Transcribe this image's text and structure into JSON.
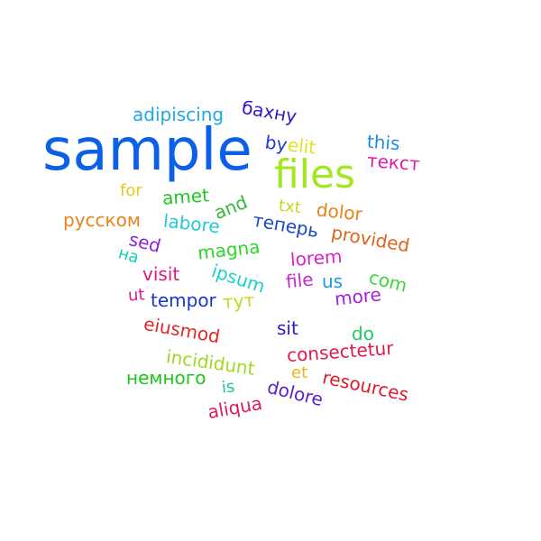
{
  "words": [
    {
      "text": "sample",
      "color": "#0b5fe8"
    },
    {
      "text": "files",
      "color": "#a2e81c"
    },
    {
      "text": "adipiscing",
      "color": "#1fa8e8"
    },
    {
      "text": "бахну",
      "color": "#3a15c8"
    },
    {
      "text": "by",
      "color": "#2338d8"
    },
    {
      "text": "elit",
      "color": "#e0e322"
    },
    {
      "text": "this",
      "color": "#1c8ee0"
    },
    {
      "text": "текст",
      "color": "#e01aa8"
    },
    {
      "text": "for",
      "color": "#e8c81a"
    },
    {
      "text": "amet",
      "color": "#22c822"
    },
    {
      "text": "and",
      "color": "#36b83a"
    },
    {
      "text": "txt",
      "color": "#c8d622"
    },
    {
      "text": "dolor",
      "color": "#e8821a"
    },
    {
      "text": "русском",
      "color": "#e8841a"
    },
    {
      "text": "labore",
      "color": "#25c6e0"
    },
    {
      "text": "теперь",
      "color": "#1c45c8"
    },
    {
      "text": "provided",
      "color": "#e0641c"
    },
    {
      "text": "sed",
      "color": "#8a22e0"
    },
    {
      "text": "на",
      "color": "#18d0b4"
    },
    {
      "text": "magna",
      "color": "#2ad82a"
    },
    {
      "text": "lorem",
      "color": "#d822d0"
    },
    {
      "text": "visit",
      "color": "#e01a7a"
    },
    {
      "text": "ipsum",
      "color": "#1ad2cc"
    },
    {
      "text": "file",
      "color": "#c828c8"
    },
    {
      "text": "us",
      "color": "#1a9ae0"
    },
    {
      "text": "com",
      "color": "#3ad83a"
    },
    {
      "text": "ut",
      "color": "#d81aa0"
    },
    {
      "text": "tempor",
      "color": "#1a38c8"
    },
    {
      "text": "тут",
      "color": "#c6d622"
    },
    {
      "text": "more",
      "color": "#a822d8"
    },
    {
      "text": "eiusmod",
      "color": "#e02828"
    },
    {
      "text": "sit",
      "color": "#2a1ad8"
    },
    {
      "text": "do",
      "color": "#22c860"
    },
    {
      "text": "consectetur",
      "color": "#e01a4a"
    },
    {
      "text": "incididunt",
      "color": "#a2d822"
    },
    {
      "text": "et",
      "color": "#e8b81a"
    },
    {
      "text": "немного",
      "color": "#18c818"
    },
    {
      "text": "is",
      "color": "#1ac4a4"
    },
    {
      "text": "resources",
      "color": "#e01a2a"
    },
    {
      "text": "dolore",
      "color": "#5a22c8"
    },
    {
      "text": "aliqua",
      "color": "#e01a58"
    }
  ]
}
